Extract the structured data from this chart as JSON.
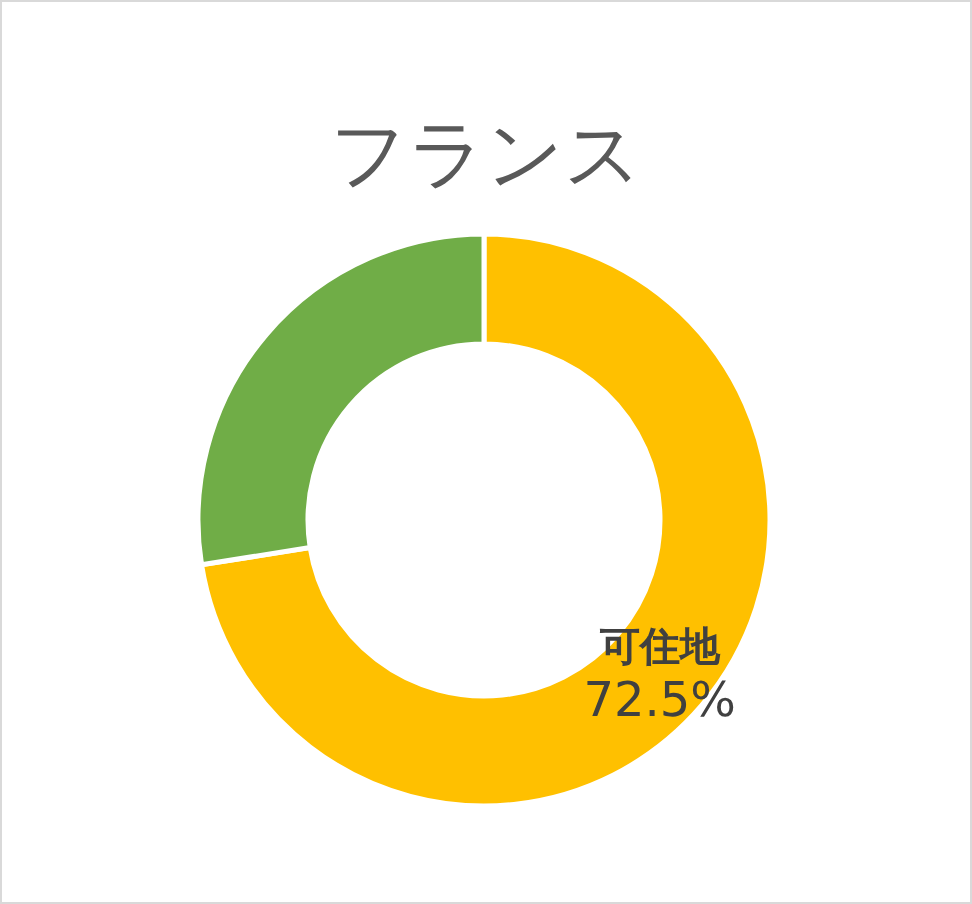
{
  "chart_data": {
    "type": "donut",
    "title": "フランス",
    "categories": [
      "可住地",
      null
    ],
    "values": [
      72.5,
      27.5
    ],
    "colors": [
      "#ffc000",
      "#70ad47"
    ],
    "value_labels": [
      "72.5%",
      null
    ]
  }
}
